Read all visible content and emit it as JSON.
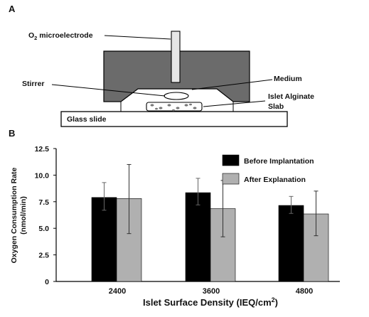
{
  "panel_a": {
    "label": "A",
    "electrode_prefix": "O",
    "electrode_sub": "2",
    "electrode_suffix": " microelectrode",
    "stirrer": "Stirrer",
    "medium": "Medium",
    "slab_line1": "Islet Alginate",
    "slab_line2": "Slab",
    "glass": "Glass slide"
  },
  "panel_b": {
    "label": "B"
  },
  "colors": {
    "before": "#000000",
    "after": "#b0b0b0",
    "chamber": "#6b6b6b"
  },
  "chart_data": {
    "type": "bar",
    "categories": [
      "2400",
      "3600",
      "4800"
    ],
    "series": [
      {
        "name": "Before Implantation",
        "values": [
          7.9,
          8.35,
          7.15
        ],
        "err_low": [
          6.7,
          7.2,
          6.4
        ],
        "err_high": [
          9.3,
          9.7,
          8.0
        ]
      },
      {
        "name": "After Explanation",
        "values": [
          7.8,
          6.85,
          6.35
        ],
        "err_low": [
          4.5,
          4.2,
          4.3
        ],
        "err_high": [
          11.0,
          9.5,
          8.5
        ]
      }
    ],
    "ylim": [
      0,
      12.5
    ],
    "yticks": [
      "0",
      "2.5",
      "5.0",
      "7.5",
      "10.0",
      "12.5"
    ],
    "ylabel_line1": "Oxygen  Consumption  Rate",
    "ylabel_line2": "(nmol/min)",
    "xlabel": "Islet Surface Density (IEQ/cm",
    "xlabel_sup": "2",
    "xlabel_end": ")",
    "legend_position": "top-right",
    "grid": false
  }
}
